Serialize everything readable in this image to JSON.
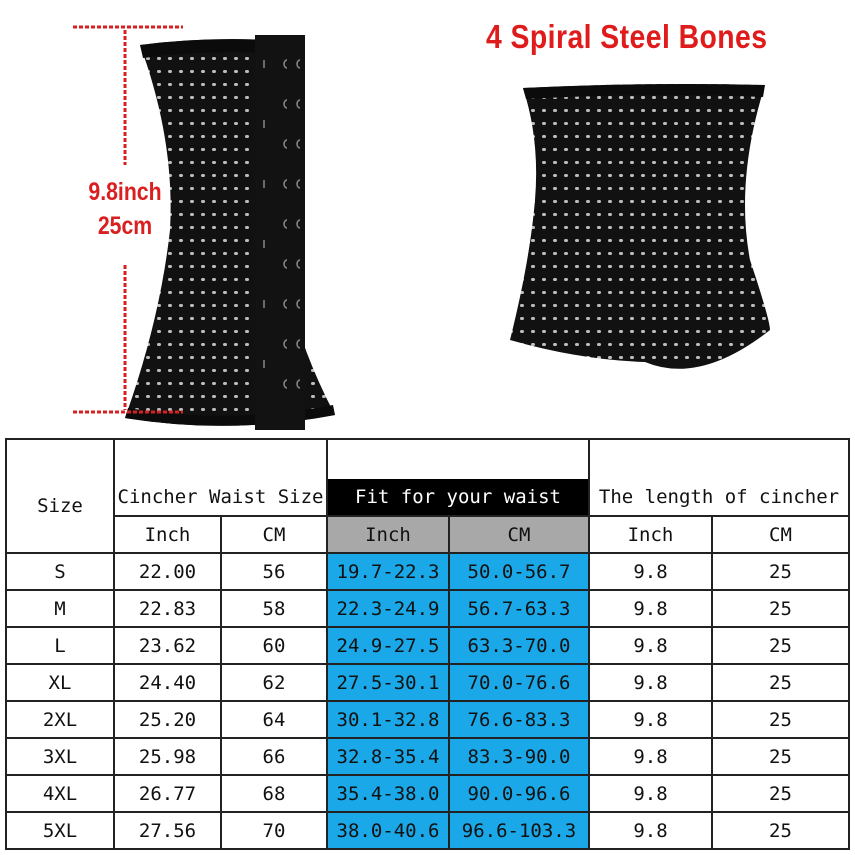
{
  "product": {
    "title": "4 Spiral Steel Bones",
    "length_inch": "9.8inch",
    "length_cm": "25cm",
    "colors": {
      "accent_red": "#e01b1b",
      "fit_highlight": "#1aa8e8",
      "subheader_grey": "#a8a8a8",
      "garment": "#111111"
    }
  },
  "size_chart": {
    "headers": {
      "size": "Size",
      "cincher_waist": "Cincher Waist Size",
      "fit_waist": "Fit for your waist",
      "length": "The length of cincher"
    },
    "subheaders": [
      "Inch",
      "CM",
      "Inch",
      "CM",
      "Inch",
      "CM"
    ],
    "rows": [
      [
        "S",
        "22.00",
        "56",
        "19.7-22.3",
        "50.0-56.7",
        "9.8",
        "25"
      ],
      [
        "M",
        "22.83",
        "58",
        "22.3-24.9",
        "56.7-63.3",
        "9.8",
        "25"
      ],
      [
        "L",
        "23.62",
        "60",
        "24.9-27.5",
        "63.3-70.0",
        "9.8",
        "25"
      ],
      [
        "XL",
        "24.40",
        "62",
        "27.5-30.1",
        "70.0-76.6",
        "9.8",
        "25"
      ],
      [
        "2XL",
        "25.20",
        "64",
        "30.1-32.8",
        "76.6-83.3",
        "9.8",
        "25"
      ],
      [
        "3XL",
        "25.98",
        "66",
        "32.8-35.4",
        "83.3-90.0",
        "9.8",
        "25"
      ],
      [
        "4XL",
        "26.77",
        "68",
        "35.4-38.0",
        "90.0-96.6",
        "9.8",
        "25"
      ],
      [
        "5XL",
        "27.56",
        "70",
        "38.0-40.6",
        "96.6-103.3",
        "9.8",
        "25"
      ]
    ]
  }
}
